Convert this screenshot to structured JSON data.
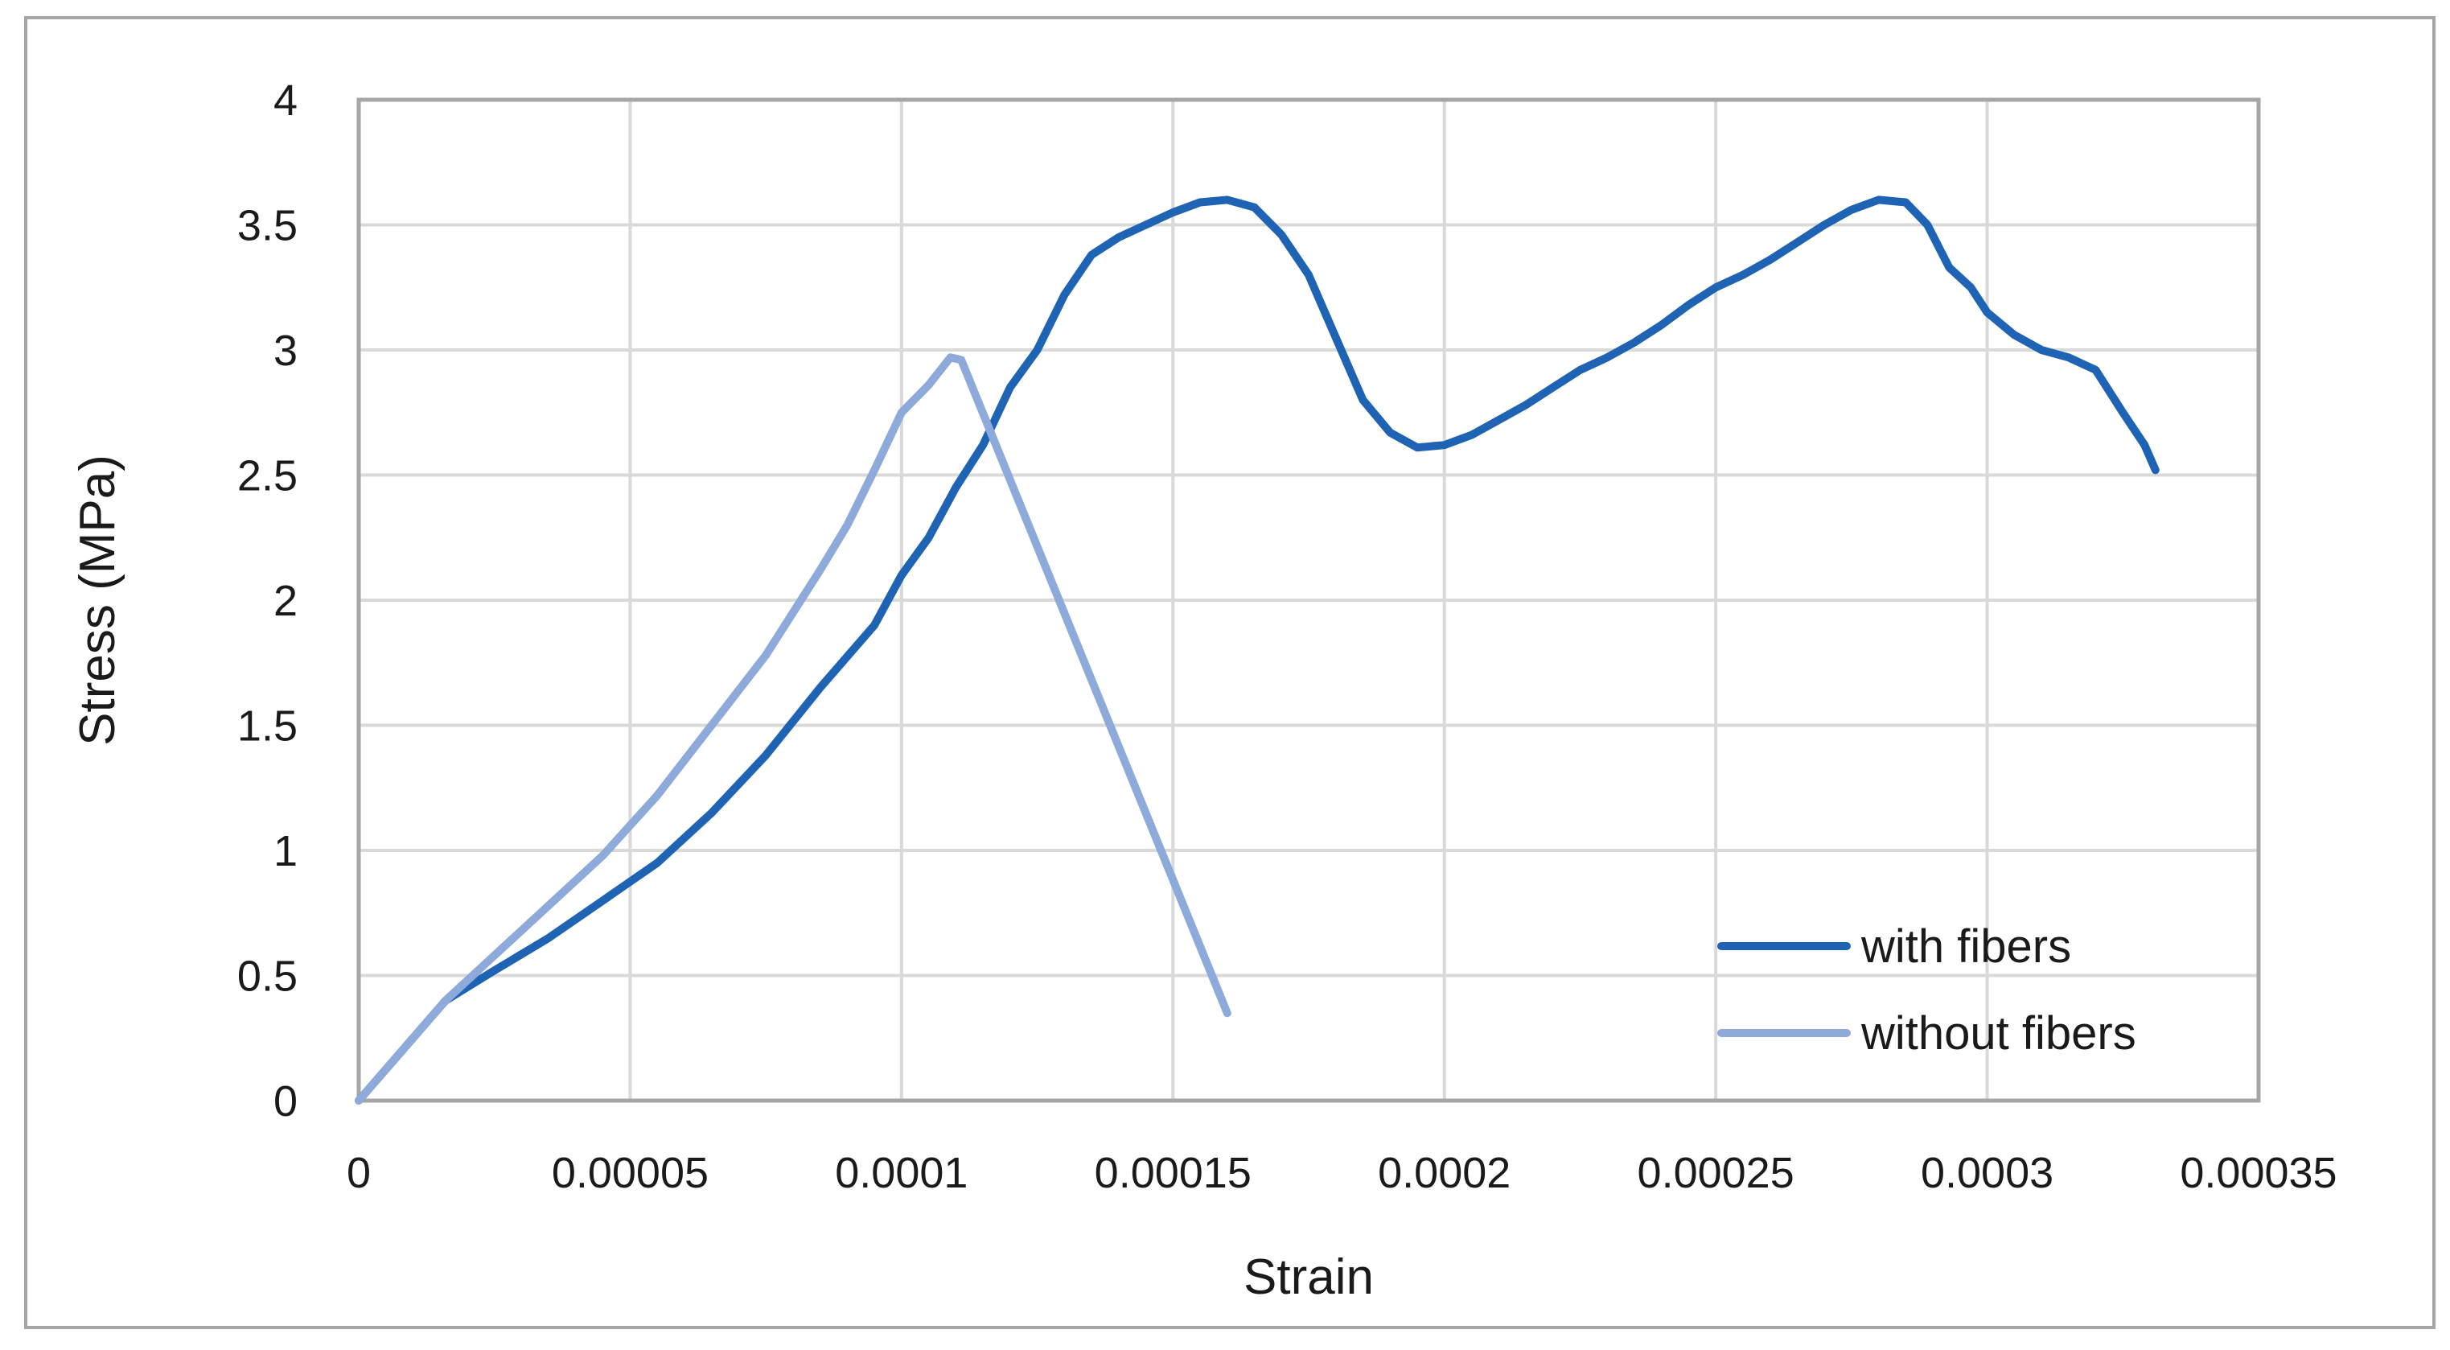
{
  "chart_data": {
    "type": "line",
    "title": "",
    "xlabel": "Strain",
    "ylabel": "Stress (MPa)",
    "xlim": [
      0,
      0.00035
    ],
    "ylim": [
      0,
      4
    ],
    "x_ticks": [
      0,
      5e-05,
      0.0001,
      0.00015,
      0.0002,
      0.00025,
      0.0003,
      0.00035
    ],
    "x_tick_labels": [
      "0",
      "0.00005",
      "0.0001",
      "0.00015",
      "0.0002",
      "0.00025",
      "0.0003",
      "0.00035"
    ],
    "y_ticks": [
      0,
      0.5,
      1,
      1.5,
      2,
      2.5,
      3,
      3.5,
      4
    ],
    "y_tick_labels": [
      "0",
      "0.5",
      "1",
      "1.5",
      "2",
      "2.5",
      "3",
      "3.5",
      "4"
    ],
    "grid": true,
    "legend_position": "bottom-right",
    "series": [
      {
        "name": "with fibers",
        "color": "#1f64b4",
        "points": [
          [
            0,
            0
          ],
          [
            8e-06,
            0.2
          ],
          [
            1.6e-05,
            0.4
          ],
          [
            2.5e-05,
            0.52
          ],
          [
            3.5e-05,
            0.65
          ],
          [
            4.5e-05,
            0.8
          ],
          [
            5.5e-05,
            0.95
          ],
          [
            6.5e-05,
            1.15
          ],
          [
            7.5e-05,
            1.38
          ],
          [
            8.5e-05,
            1.65
          ],
          [
            9.5e-05,
            1.9
          ],
          [
            0.0001,
            2.1
          ],
          [
            0.000105,
            2.25
          ],
          [
            0.00011,
            2.45
          ],
          [
            0.000115,
            2.62
          ],
          [
            0.00012,
            2.85
          ],
          [
            0.000125,
            3.0
          ],
          [
            0.00013,
            3.22
          ],
          [
            0.000135,
            3.38
          ],
          [
            0.00014,
            3.45
          ],
          [
            0.000145,
            3.5
          ],
          [
            0.00015,
            3.55
          ],
          [
            0.000155,
            3.59
          ],
          [
            0.00016,
            3.6
          ],
          [
            0.000165,
            3.57
          ],
          [
            0.00017,
            3.46
          ],
          [
            0.000175,
            3.3
          ],
          [
            0.00018,
            3.05
          ],
          [
            0.000185,
            2.8
          ],
          [
            0.00019,
            2.67
          ],
          [
            0.000195,
            2.61
          ],
          [
            0.0002,
            2.62
          ],
          [
            0.000205,
            2.66
          ],
          [
            0.00021,
            2.72
          ],
          [
            0.000215,
            2.78
          ],
          [
            0.00022,
            2.85
          ],
          [
            0.000225,
            2.92
          ],
          [
            0.00023,
            2.97
          ],
          [
            0.000235,
            3.03
          ],
          [
            0.00024,
            3.1
          ],
          [
            0.000245,
            3.18
          ],
          [
            0.00025,
            3.25
          ],
          [
            0.000255,
            3.3
          ],
          [
            0.00026,
            3.36
          ],
          [
            0.000265,
            3.43
          ],
          [
            0.00027,
            3.5
          ],
          [
            0.000275,
            3.56
          ],
          [
            0.00028,
            3.6
          ],
          [
            0.000285,
            3.59
          ],
          [
            0.000289,
            3.5
          ],
          [
            0.000293,
            3.33
          ],
          [
            0.000297,
            3.25
          ],
          [
            0.0003,
            3.15
          ],
          [
            0.000305,
            3.06
          ],
          [
            0.00031,
            3.0
          ],
          [
            0.000315,
            2.97
          ],
          [
            0.00032,
            2.92
          ],
          [
            0.000325,
            2.75
          ],
          [
            0.000329,
            2.62
          ],
          [
            0.000331,
            2.52
          ]
        ]
      },
      {
        "name": "without fibers",
        "color": "#8eaadb",
        "points": [
          [
            0,
            0
          ],
          [
            8e-06,
            0.2
          ],
          [
            1.6e-05,
            0.4
          ],
          [
            2.5e-05,
            0.58
          ],
          [
            3.5e-05,
            0.78
          ],
          [
            4.5e-05,
            0.98
          ],
          [
            5.5e-05,
            1.22
          ],
          [
            6.5e-05,
            1.5
          ],
          [
            7.5e-05,
            1.78
          ],
          [
            8.5e-05,
            2.12
          ],
          [
            9e-05,
            2.3
          ],
          [
            9.5e-05,
            2.52
          ],
          [
            0.0001,
            2.75
          ],
          [
            0.000105,
            2.86
          ],
          [
            0.000109,
            2.97
          ],
          [
            0.000111,
            2.96
          ],
          [
            0.00016,
            0.35
          ]
        ]
      }
    ]
  }
}
